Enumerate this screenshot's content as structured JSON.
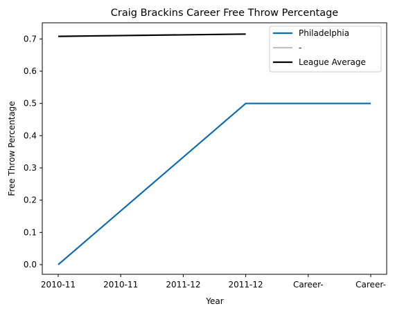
{
  "chart_data": {
    "type": "line",
    "title": "Craig Brackins Career Free Throw Percentage",
    "xlabel": "Year",
    "ylabel": "Free Throw Percentage",
    "categories": [
      "2010-11",
      "2010-11",
      "2011-12",
      "2011-12",
      "Career-",
      "Career-"
    ],
    "ylim": [
      -0.03,
      0.75
    ],
    "yticks": [
      0.0,
      0.1,
      0.2,
      0.3,
      0.4,
      0.5,
      0.6,
      0.7
    ],
    "ytick_labels": [
      "0.0",
      "0.1",
      "0.2",
      "0.3",
      "0.4",
      "0.5",
      "0.6",
      "0.7"
    ],
    "grid": false,
    "legend_position": "top-right",
    "series": [
      {
        "name": "Philadelphia",
        "color": "#0b6cb0",
        "values": [
          0.0,
          null,
          null,
          0.5,
          null,
          0.5
        ]
      },
      {
        "name": "-",
        "color": "#bfbfbf",
        "values": [
          null,
          null,
          null,
          null,
          null,
          null
        ]
      },
      {
        "name": "League Average",
        "color": "#000000",
        "values": [
          0.708,
          null,
          null,
          0.715,
          null,
          null
        ]
      }
    ]
  }
}
